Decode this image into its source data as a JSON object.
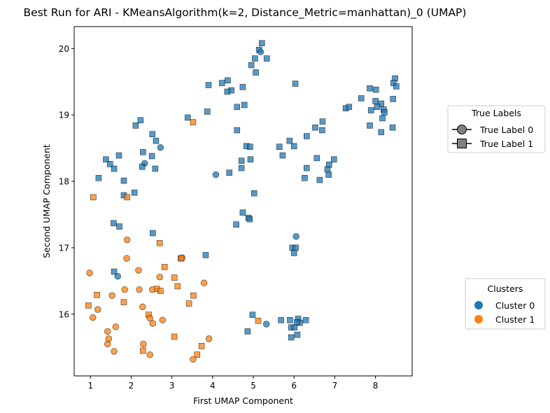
{
  "chart_data": {
    "type": "scatter",
    "title": "Best Run for ARI - KMeansAlgorithm(k=2, Distance_Metric=manhattan)_0 (UMAP)",
    "xlabel": "First UMAP Component",
    "ylabel": "Second UMAP Component",
    "xlim": [
      0.6,
      8.9
    ],
    "ylim": [
      15.07,
      20.33
    ],
    "xticks": [
      1,
      2,
      3,
      4,
      5,
      6,
      7,
      8
    ],
    "yticks": [
      16,
      17,
      18,
      19,
      20
    ],
    "grid": false,
    "colors": {
      "cluster0": "#1f77b4",
      "cluster1": "#ff7f0e",
      "legend_marker": "#808080"
    },
    "legend_true_labels": {
      "title": "True Labels",
      "placement": "right-upper",
      "entries": [
        {
          "label": "True Label 0",
          "marker": "circle"
        },
        {
          "label": "True Label 1",
          "marker": "square"
        }
      ]
    },
    "legend_clusters": {
      "title": "Clusters",
      "placement": "right-lower",
      "entries": [
        {
          "label": "Cluster 0",
          "color": "#1f77b4"
        },
        {
          "label": "Cluster 1",
          "color": "#ff7f0e"
        }
      ]
    },
    "points": [
      {
        "x": 5.21,
        "y": 20.08,
        "c": 0,
        "m": "s"
      },
      {
        "x": 5.14,
        "y": 19.98,
        "c": 0,
        "m": "s"
      },
      {
        "x": 5.18,
        "y": 19.95,
        "c": 0,
        "m": "o"
      },
      {
        "x": 5.33,
        "y": 19.85,
        "c": 0,
        "m": "s"
      },
      {
        "x": 5.04,
        "y": 19.85,
        "c": 0,
        "m": "s"
      },
      {
        "x": 4.95,
        "y": 19.75,
        "c": 0,
        "m": "s"
      },
      {
        "x": 5.06,
        "y": 19.64,
        "c": 0,
        "m": "s"
      },
      {
        "x": 4.37,
        "y": 19.52,
        "c": 0,
        "m": "s"
      },
      {
        "x": 4.23,
        "y": 19.48,
        "c": 0,
        "m": "s"
      },
      {
        "x": 4.74,
        "y": 19.42,
        "c": 0,
        "m": "s"
      },
      {
        "x": 3.9,
        "y": 19.45,
        "c": 0,
        "m": "s"
      },
      {
        "x": 4.46,
        "y": 19.37,
        "c": 0,
        "m": "s"
      },
      {
        "x": 4.36,
        "y": 19.35,
        "c": 0,
        "m": "s"
      },
      {
        "x": 6.03,
        "y": 19.47,
        "c": 0,
        "m": "s"
      },
      {
        "x": 4.78,
        "y": 19.15,
        "c": 0,
        "m": "s"
      },
      {
        "x": 4.6,
        "y": 19.12,
        "c": 0,
        "m": "s"
      },
      {
        "x": 3.87,
        "y": 19.05,
        "c": 0,
        "m": "s"
      },
      {
        "x": 3.39,
        "y": 18.96,
        "c": 0,
        "m": "s"
      },
      {
        "x": 3.52,
        "y": 18.89,
        "c": 1,
        "m": "s"
      },
      {
        "x": 4.6,
        "y": 18.77,
        "c": 0,
        "m": "s"
      },
      {
        "x": 2.23,
        "y": 18.92,
        "c": 0,
        "m": "s"
      },
      {
        "x": 2.11,
        "y": 18.84,
        "c": 0,
        "m": "s"
      },
      {
        "x": 2.52,
        "y": 18.71,
        "c": 0,
        "m": "s"
      },
      {
        "x": 2.61,
        "y": 18.61,
        "c": 0,
        "m": "s"
      },
      {
        "x": 2.72,
        "y": 18.51,
        "c": 0,
        "m": "o"
      },
      {
        "x": 2.29,
        "y": 18.44,
        "c": 0,
        "m": "s"
      },
      {
        "x": 2.51,
        "y": 18.38,
        "c": 0,
        "m": "s"
      },
      {
        "x": 2.33,
        "y": 18.27,
        "c": 0,
        "m": "o"
      },
      {
        "x": 2.27,
        "y": 18.22,
        "c": 0,
        "m": "s"
      },
      {
        "x": 2.59,
        "y": 18.19,
        "c": 0,
        "m": "s"
      },
      {
        "x": 1.38,
        "y": 18.33,
        "c": 0,
        "m": "s"
      },
      {
        "x": 1.7,
        "y": 18.39,
        "c": 0,
        "m": "s"
      },
      {
        "x": 1.48,
        "y": 18.26,
        "c": 0,
        "m": "s"
      },
      {
        "x": 1.58,
        "y": 18.19,
        "c": 0,
        "m": "s"
      },
      {
        "x": 1.2,
        "y": 18.05,
        "c": 0,
        "m": "s"
      },
      {
        "x": 1.82,
        "y": 18.01,
        "c": 0,
        "m": "s"
      },
      {
        "x": 2.08,
        "y": 17.83,
        "c": 0,
        "m": "s"
      },
      {
        "x": 1.82,
        "y": 17.79,
        "c": 0,
        "m": "s"
      },
      {
        "x": 1.07,
        "y": 17.76,
        "c": 1,
        "m": "s"
      },
      {
        "x": 1.9,
        "y": 17.76,
        "c": 1,
        "m": "s"
      },
      {
        "x": 4.08,
        "y": 18.1,
        "c": 0,
        "m": "o"
      },
      {
        "x": 4.41,
        "y": 18.13,
        "c": 0,
        "m": "s"
      },
      {
        "x": 4.71,
        "y": 18.2,
        "c": 0,
        "m": "s"
      },
      {
        "x": 4.71,
        "y": 18.31,
        "c": 0,
        "m": "s"
      },
      {
        "x": 4.93,
        "y": 18.33,
        "c": 0,
        "m": "s"
      },
      {
        "x": 4.83,
        "y": 18.53,
        "c": 0,
        "m": "s"
      },
      {
        "x": 4.92,
        "y": 18.52,
        "c": 0,
        "m": "s"
      },
      {
        "x": 5.64,
        "y": 18.52,
        "c": 0,
        "m": "s"
      },
      {
        "x": 5.72,
        "y": 18.39,
        "c": 0,
        "m": "s"
      },
      {
        "x": 5.89,
        "y": 18.61,
        "c": 0,
        "m": "s"
      },
      {
        "x": 6.0,
        "y": 18.53,
        "c": 0,
        "m": "s"
      },
      {
        "x": 6.31,
        "y": 18.68,
        "c": 0,
        "m": "s"
      },
      {
        "x": 6.52,
        "y": 18.81,
        "c": 0,
        "m": "s"
      },
      {
        "x": 6.7,
        "y": 18.9,
        "c": 0,
        "m": "s"
      },
      {
        "x": 6.69,
        "y": 18.77,
        "c": 0,
        "m": "s"
      },
      {
        "x": 6.31,
        "y": 18.2,
        "c": 0,
        "m": "s"
      },
      {
        "x": 6.56,
        "y": 18.35,
        "c": 0,
        "m": "s"
      },
      {
        "x": 6.26,
        "y": 18.05,
        "c": 0,
        "m": "s"
      },
      {
        "x": 6.63,
        "y": 18.02,
        "c": 0,
        "m": "s"
      },
      {
        "x": 6.85,
        "y": 18.1,
        "c": 0,
        "m": "s"
      },
      {
        "x": 6.86,
        "y": 18.25,
        "c": 0,
        "m": "s"
      },
      {
        "x": 6.98,
        "y": 18.33,
        "c": 0,
        "m": "s"
      },
      {
        "x": 6.82,
        "y": 18.18,
        "c": 0,
        "m": "s"
      },
      {
        "x": 7.27,
        "y": 19.1,
        "c": 0,
        "m": "s"
      },
      {
        "x": 7.35,
        "y": 19.12,
        "c": 0,
        "m": "s"
      },
      {
        "x": 7.65,
        "y": 19.25,
        "c": 0,
        "m": "s"
      },
      {
        "x": 7.86,
        "y": 19.4,
        "c": 0,
        "m": "s"
      },
      {
        "x": 8.01,
        "y": 19.38,
        "c": 0,
        "m": "s"
      },
      {
        "x": 7.89,
        "y": 19.07,
        "c": 0,
        "m": "s"
      },
      {
        "x": 8.0,
        "y": 19.21,
        "c": 0,
        "m": "s"
      },
      {
        "x": 8.14,
        "y": 19.17,
        "c": 0,
        "m": "s"
      },
      {
        "x": 8.04,
        "y": 19.12,
        "c": 0,
        "m": "s"
      },
      {
        "x": 8.2,
        "y": 19.08,
        "c": 0,
        "m": "s"
      },
      {
        "x": 8.22,
        "y": 19.04,
        "c": 0,
        "m": "s"
      },
      {
        "x": 8.17,
        "y": 18.95,
        "c": 0,
        "m": "s"
      },
      {
        "x": 7.86,
        "y": 18.84,
        "c": 0,
        "m": "s"
      },
      {
        "x": 8.14,
        "y": 18.74,
        "c": 0,
        "m": "s"
      },
      {
        "x": 8.42,
        "y": 18.81,
        "c": 0,
        "m": "s"
      },
      {
        "x": 8.43,
        "y": 19.24,
        "c": 0,
        "m": "s"
      },
      {
        "x": 8.48,
        "y": 19.55,
        "c": 0,
        "m": "s"
      },
      {
        "x": 8.44,
        "y": 19.48,
        "c": 0,
        "m": "s"
      },
      {
        "x": 8.51,
        "y": 19.43,
        "c": 0,
        "m": "s"
      },
      {
        "x": 4.74,
        "y": 17.53,
        "c": 0,
        "m": "s"
      },
      {
        "x": 4.88,
        "y": 17.45,
        "c": 0,
        "m": "s"
      },
      {
        "x": 4.91,
        "y": 17.43,
        "c": 0,
        "m": "s"
      },
      {
        "x": 4.58,
        "y": 17.35,
        "c": 0,
        "m": "s"
      },
      {
        "x": 5.02,
        "y": 17.82,
        "c": 0,
        "m": "s"
      },
      {
        "x": 6.05,
        "y": 17.17,
        "c": 0,
        "m": "o"
      },
      {
        "x": 5.96,
        "y": 17.0,
        "c": 0,
        "m": "s"
      },
      {
        "x": 6.04,
        "y": 17.0,
        "c": 0,
        "m": "s"
      },
      {
        "x": 6.0,
        "y": 16.92,
        "c": 0,
        "m": "s"
      },
      {
        "x": 1.57,
        "y": 17.37,
        "c": 0,
        "m": "s"
      },
      {
        "x": 1.71,
        "y": 17.32,
        "c": 0,
        "m": "s"
      },
      {
        "x": 2.53,
        "y": 17.22,
        "c": 0,
        "m": "s"
      },
      {
        "x": 3.83,
        "y": 16.89,
        "c": 0,
        "m": "s"
      },
      {
        "x": 1.58,
        "y": 16.64,
        "c": 0,
        "m": "s"
      },
      {
        "x": 1.67,
        "y": 16.57,
        "c": 0,
        "m": "o"
      },
      {
        "x": 3.22,
        "y": 16.84,
        "c": 0,
        "m": "s"
      },
      {
        "x": 4.98,
        "y": 15.99,
        "c": 0,
        "m": "s"
      },
      {
        "x": 5.32,
        "y": 15.85,
        "c": 0,
        "m": "o"
      },
      {
        "x": 4.86,
        "y": 15.74,
        "c": 0,
        "m": "s"
      },
      {
        "x": 5.68,
        "y": 15.91,
        "c": 0,
        "m": "s"
      },
      {
        "x": 5.9,
        "y": 15.91,
        "c": 0,
        "m": "s"
      },
      {
        "x": 5.93,
        "y": 15.8,
        "c": 0,
        "m": "s"
      },
      {
        "x": 6.01,
        "y": 15.8,
        "c": 0,
        "m": "s"
      },
      {
        "x": 6.1,
        "y": 15.93,
        "c": 0,
        "m": "s"
      },
      {
        "x": 6.14,
        "y": 15.87,
        "c": 0,
        "m": "s"
      },
      {
        "x": 6.29,
        "y": 15.91,
        "c": 0,
        "m": "s"
      },
      {
        "x": 6.07,
        "y": 15.88,
        "c": 0,
        "m": "s"
      },
      {
        "x": 6.08,
        "y": 15.69,
        "c": 0,
        "m": "s"
      },
      {
        "x": 5.93,
        "y": 15.65,
        "c": 0,
        "m": "s"
      },
      {
        "x": 1.9,
        "y": 17.12,
        "c": 1,
        "m": "o"
      },
      {
        "x": 2.7,
        "y": 17.07,
        "c": 1,
        "m": "s"
      },
      {
        "x": 1.89,
        "y": 16.84,
        "c": 1,
        "m": "o"
      },
      {
        "x": 3.25,
        "y": 16.85,
        "c": 1,
        "m": "o"
      },
      {
        "x": 3.23,
        "y": 16.84,
        "c": 1,
        "m": "s"
      },
      {
        "x": 2.18,
        "y": 16.66,
        "c": 1,
        "m": "o"
      },
      {
        "x": 2.82,
        "y": 16.71,
        "c": 1,
        "m": "s"
      },
      {
        "x": 0.98,
        "y": 16.62,
        "c": 1,
        "m": "o"
      },
      {
        "x": 2.7,
        "y": 16.56,
        "c": 1,
        "m": "o"
      },
      {
        "x": 3.06,
        "y": 16.55,
        "c": 1,
        "m": "s"
      },
      {
        "x": 3.79,
        "y": 16.47,
        "c": 1,
        "m": "o"
      },
      {
        "x": 3.14,
        "y": 16.42,
        "c": 1,
        "m": "s"
      },
      {
        "x": 2.2,
        "y": 16.37,
        "c": 1,
        "m": "o"
      },
      {
        "x": 1.84,
        "y": 16.37,
        "c": 1,
        "m": "o"
      },
      {
        "x": 2.63,
        "y": 16.38,
        "c": 1,
        "m": "s"
      },
      {
        "x": 2.72,
        "y": 16.35,
        "c": 1,
        "m": "s"
      },
      {
        "x": 2.52,
        "y": 16.37,
        "c": 1,
        "m": "o"
      },
      {
        "x": 1.16,
        "y": 16.29,
        "c": 1,
        "m": "s"
      },
      {
        "x": 1.53,
        "y": 16.28,
        "c": 1,
        "m": "o"
      },
      {
        "x": 3.53,
        "y": 16.28,
        "c": 1,
        "m": "s"
      },
      {
        "x": 1.82,
        "y": 16.18,
        "c": 1,
        "m": "s"
      },
      {
        "x": 0.95,
        "y": 16.13,
        "c": 1,
        "m": "s"
      },
      {
        "x": 2.28,
        "y": 16.11,
        "c": 1,
        "m": "o"
      },
      {
        "x": 3.42,
        "y": 16.16,
        "c": 1,
        "m": "s"
      },
      {
        "x": 1.18,
        "y": 16.07,
        "c": 1,
        "m": "o"
      },
      {
        "x": 2.43,
        "y": 15.99,
        "c": 1,
        "m": "s"
      },
      {
        "x": 2.46,
        "y": 15.94,
        "c": 1,
        "m": "o"
      },
      {
        "x": 1.06,
        "y": 15.95,
        "c": 1,
        "m": "o"
      },
      {
        "x": 2.77,
        "y": 15.91,
        "c": 1,
        "m": "o"
      },
      {
        "x": 2.53,
        "y": 15.86,
        "c": 1,
        "m": "o"
      },
      {
        "x": 1.62,
        "y": 15.81,
        "c": 1,
        "m": "o"
      },
      {
        "x": 5.12,
        "y": 15.9,
        "c": 1,
        "m": "s"
      },
      {
        "x": 1.42,
        "y": 15.74,
        "c": 1,
        "m": "o"
      },
      {
        "x": 3.06,
        "y": 15.66,
        "c": 1,
        "m": "s"
      },
      {
        "x": 1.45,
        "y": 15.63,
        "c": 1,
        "m": "o"
      },
      {
        "x": 3.91,
        "y": 15.63,
        "c": 1,
        "m": "o"
      },
      {
        "x": 2.3,
        "y": 15.55,
        "c": 1,
        "m": "o"
      },
      {
        "x": 1.42,
        "y": 15.55,
        "c": 1,
        "m": "o"
      },
      {
        "x": 3.73,
        "y": 15.52,
        "c": 1,
        "m": "s"
      },
      {
        "x": 2.29,
        "y": 15.45,
        "c": 1,
        "m": "s"
      },
      {
        "x": 1.58,
        "y": 15.44,
        "c": 1,
        "m": "o"
      },
      {
        "x": 2.46,
        "y": 15.39,
        "c": 1,
        "m": "o"
      },
      {
        "x": 3.62,
        "y": 15.39,
        "c": 1,
        "m": "s"
      },
      {
        "x": 3.52,
        "y": 15.32,
        "c": 1,
        "m": "o"
      }
    ]
  }
}
